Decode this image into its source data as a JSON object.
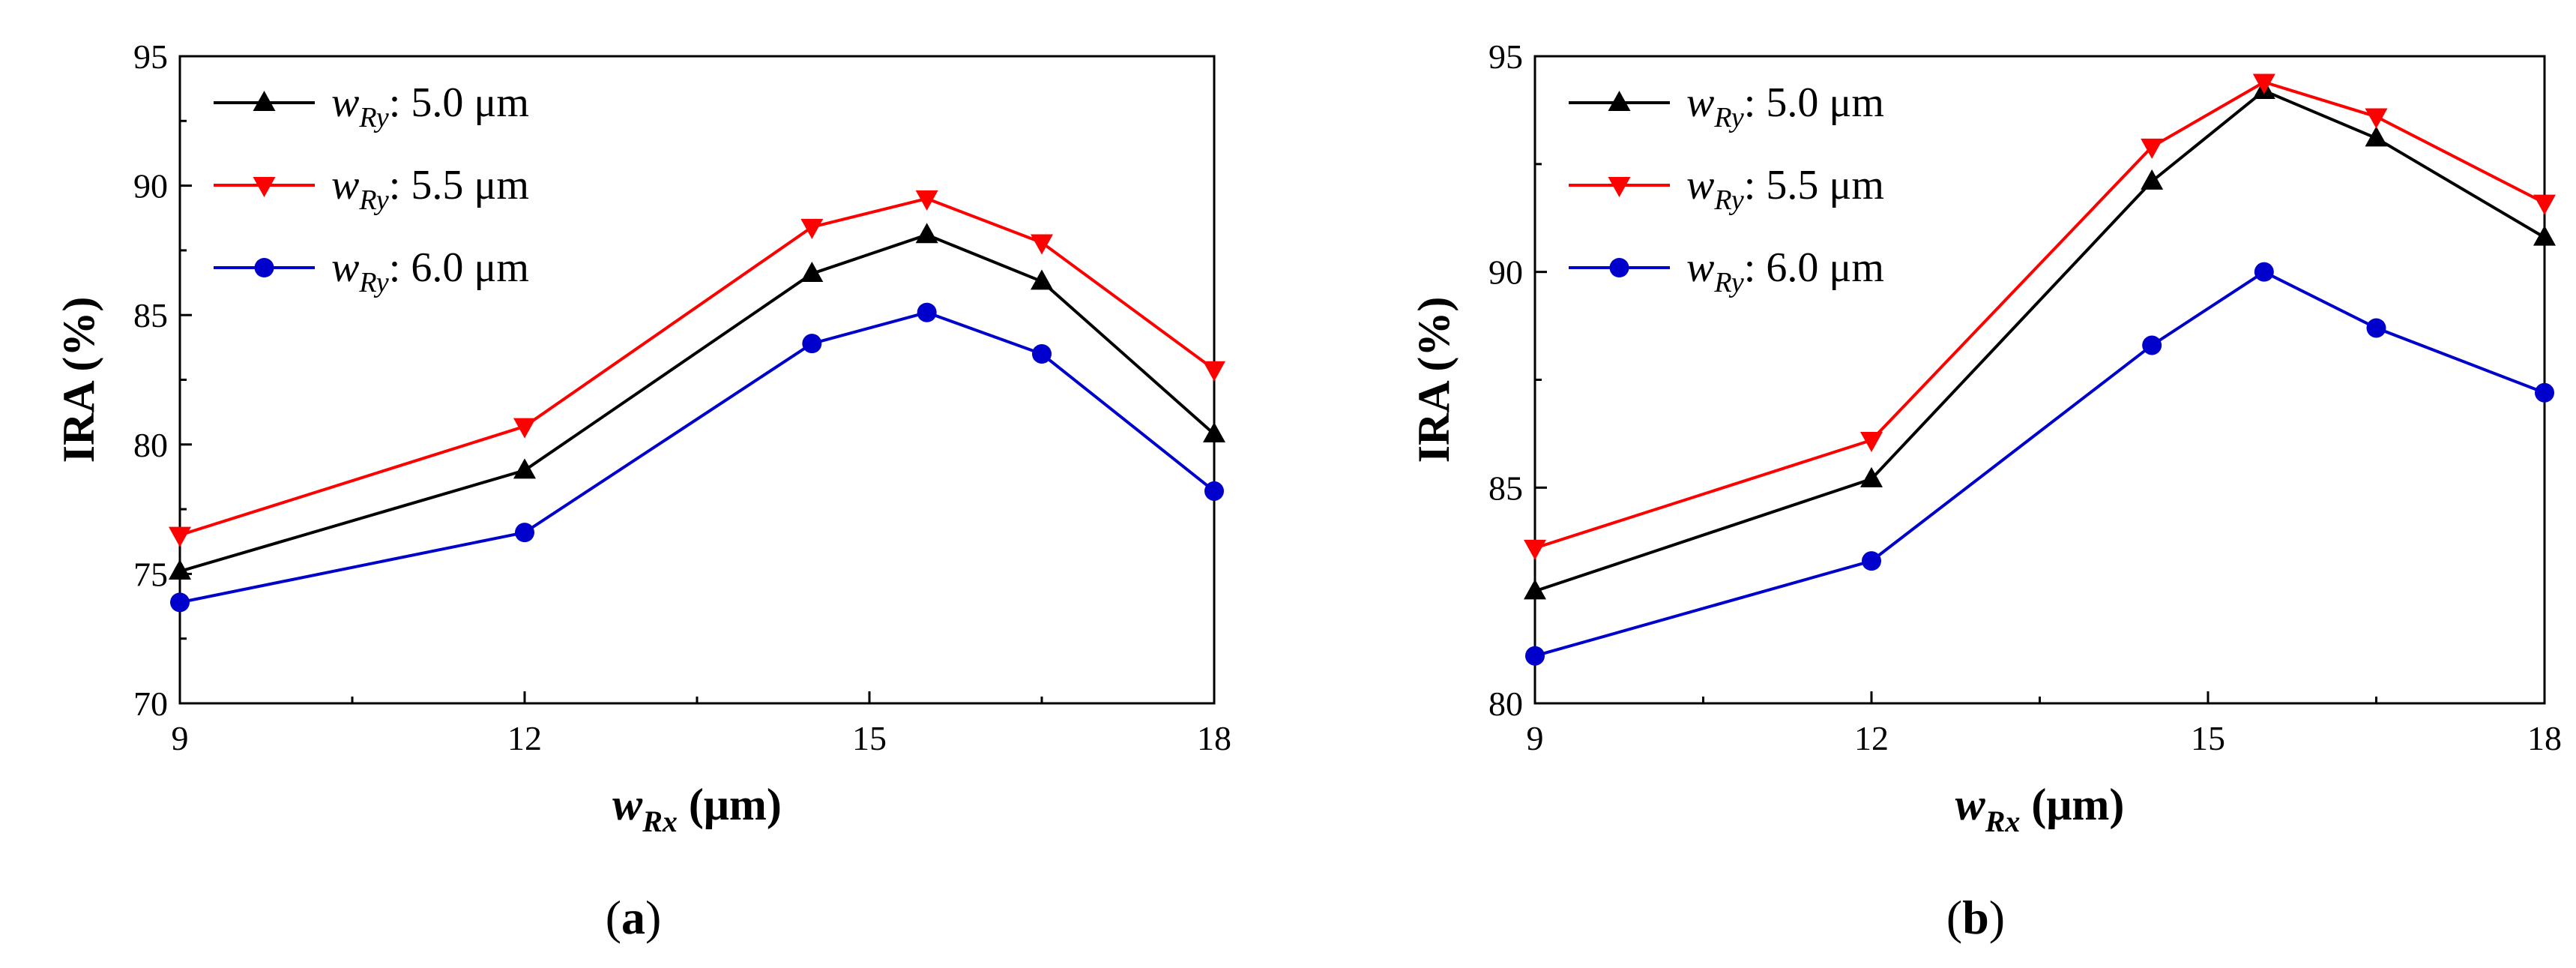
{
  "chart_data": [
    {
      "type": "line",
      "caption_letter": "a",
      "xlabel_main": "w",
      "xlabel_sub": "Rx",
      "xlabel_unit": " (μm)",
      "ylabel": "IRA (%)",
      "xlim": [
        9,
        18
      ],
      "ylim": [
        70,
        95
      ],
      "x_ticks": [
        9,
        12,
        15,
        18
      ],
      "y_ticks": [
        70,
        75,
        80,
        85,
        90,
        95
      ],
      "x": [
        9,
        12,
        14.5,
        15.5,
        16.5,
        18
      ],
      "legend_position": "top-left",
      "series": [
        {
          "name_main": "w",
          "name_sub": "Ry",
          "name_value": ": 5.0 μm",
          "color": "#000000",
          "marker": "triangle-up",
          "values": [
            75.1,
            79.0,
            86.6,
            88.1,
            86.3,
            80.4
          ]
        },
        {
          "name_main": "w",
          "name_sub": "Ry",
          "name_value": ": 5.5 μm",
          "color": "#ff0000",
          "marker": "triangle-down",
          "values": [
            76.5,
            80.7,
            88.4,
            89.5,
            87.8,
            82.9
          ]
        },
        {
          "name_main": "w",
          "name_sub": "Ry",
          "name_value": ": 6.0 μm",
          "color": "#0000cc",
          "marker": "circle",
          "values": [
            73.9,
            76.6,
            83.9,
            85.1,
            83.5,
            78.2
          ]
        }
      ]
    },
    {
      "type": "line",
      "caption_letter": "b",
      "xlabel_main": "w",
      "xlabel_sub": "Rx",
      "xlabel_unit": " (μm)",
      "ylabel": "IRA (%)",
      "xlim": [
        9,
        18
      ],
      "ylim": [
        80,
        95
      ],
      "x_ticks": [
        9,
        12,
        15,
        18
      ],
      "y_ticks": [
        80,
        85,
        90,
        95
      ],
      "x": [
        9,
        12,
        14.5,
        15.5,
        16.5,
        18
      ],
      "legend_position": "top-left",
      "series": [
        {
          "name_main": "w",
          "name_sub": "Ry",
          "name_value": ": 5.0 μm",
          "color": "#000000",
          "marker": "triangle-up",
          "values": [
            82.6,
            85.2,
            92.1,
            94.2,
            93.1,
            90.8
          ]
        },
        {
          "name_main": "w",
          "name_sub": "Ry",
          "name_value": ": 5.5 μm",
          "color": "#ff0000",
          "marker": "triangle-down",
          "values": [
            83.6,
            86.1,
            92.9,
            94.4,
            93.6,
            91.6
          ]
        },
        {
          "name_main": "w",
          "name_sub": "Ry",
          "name_value": ": 6.0 μm",
          "color": "#0000cc",
          "marker": "circle",
          "values": [
            81.1,
            83.3,
            88.3,
            90.0,
            88.7,
            87.2
          ]
        }
      ]
    }
  ]
}
